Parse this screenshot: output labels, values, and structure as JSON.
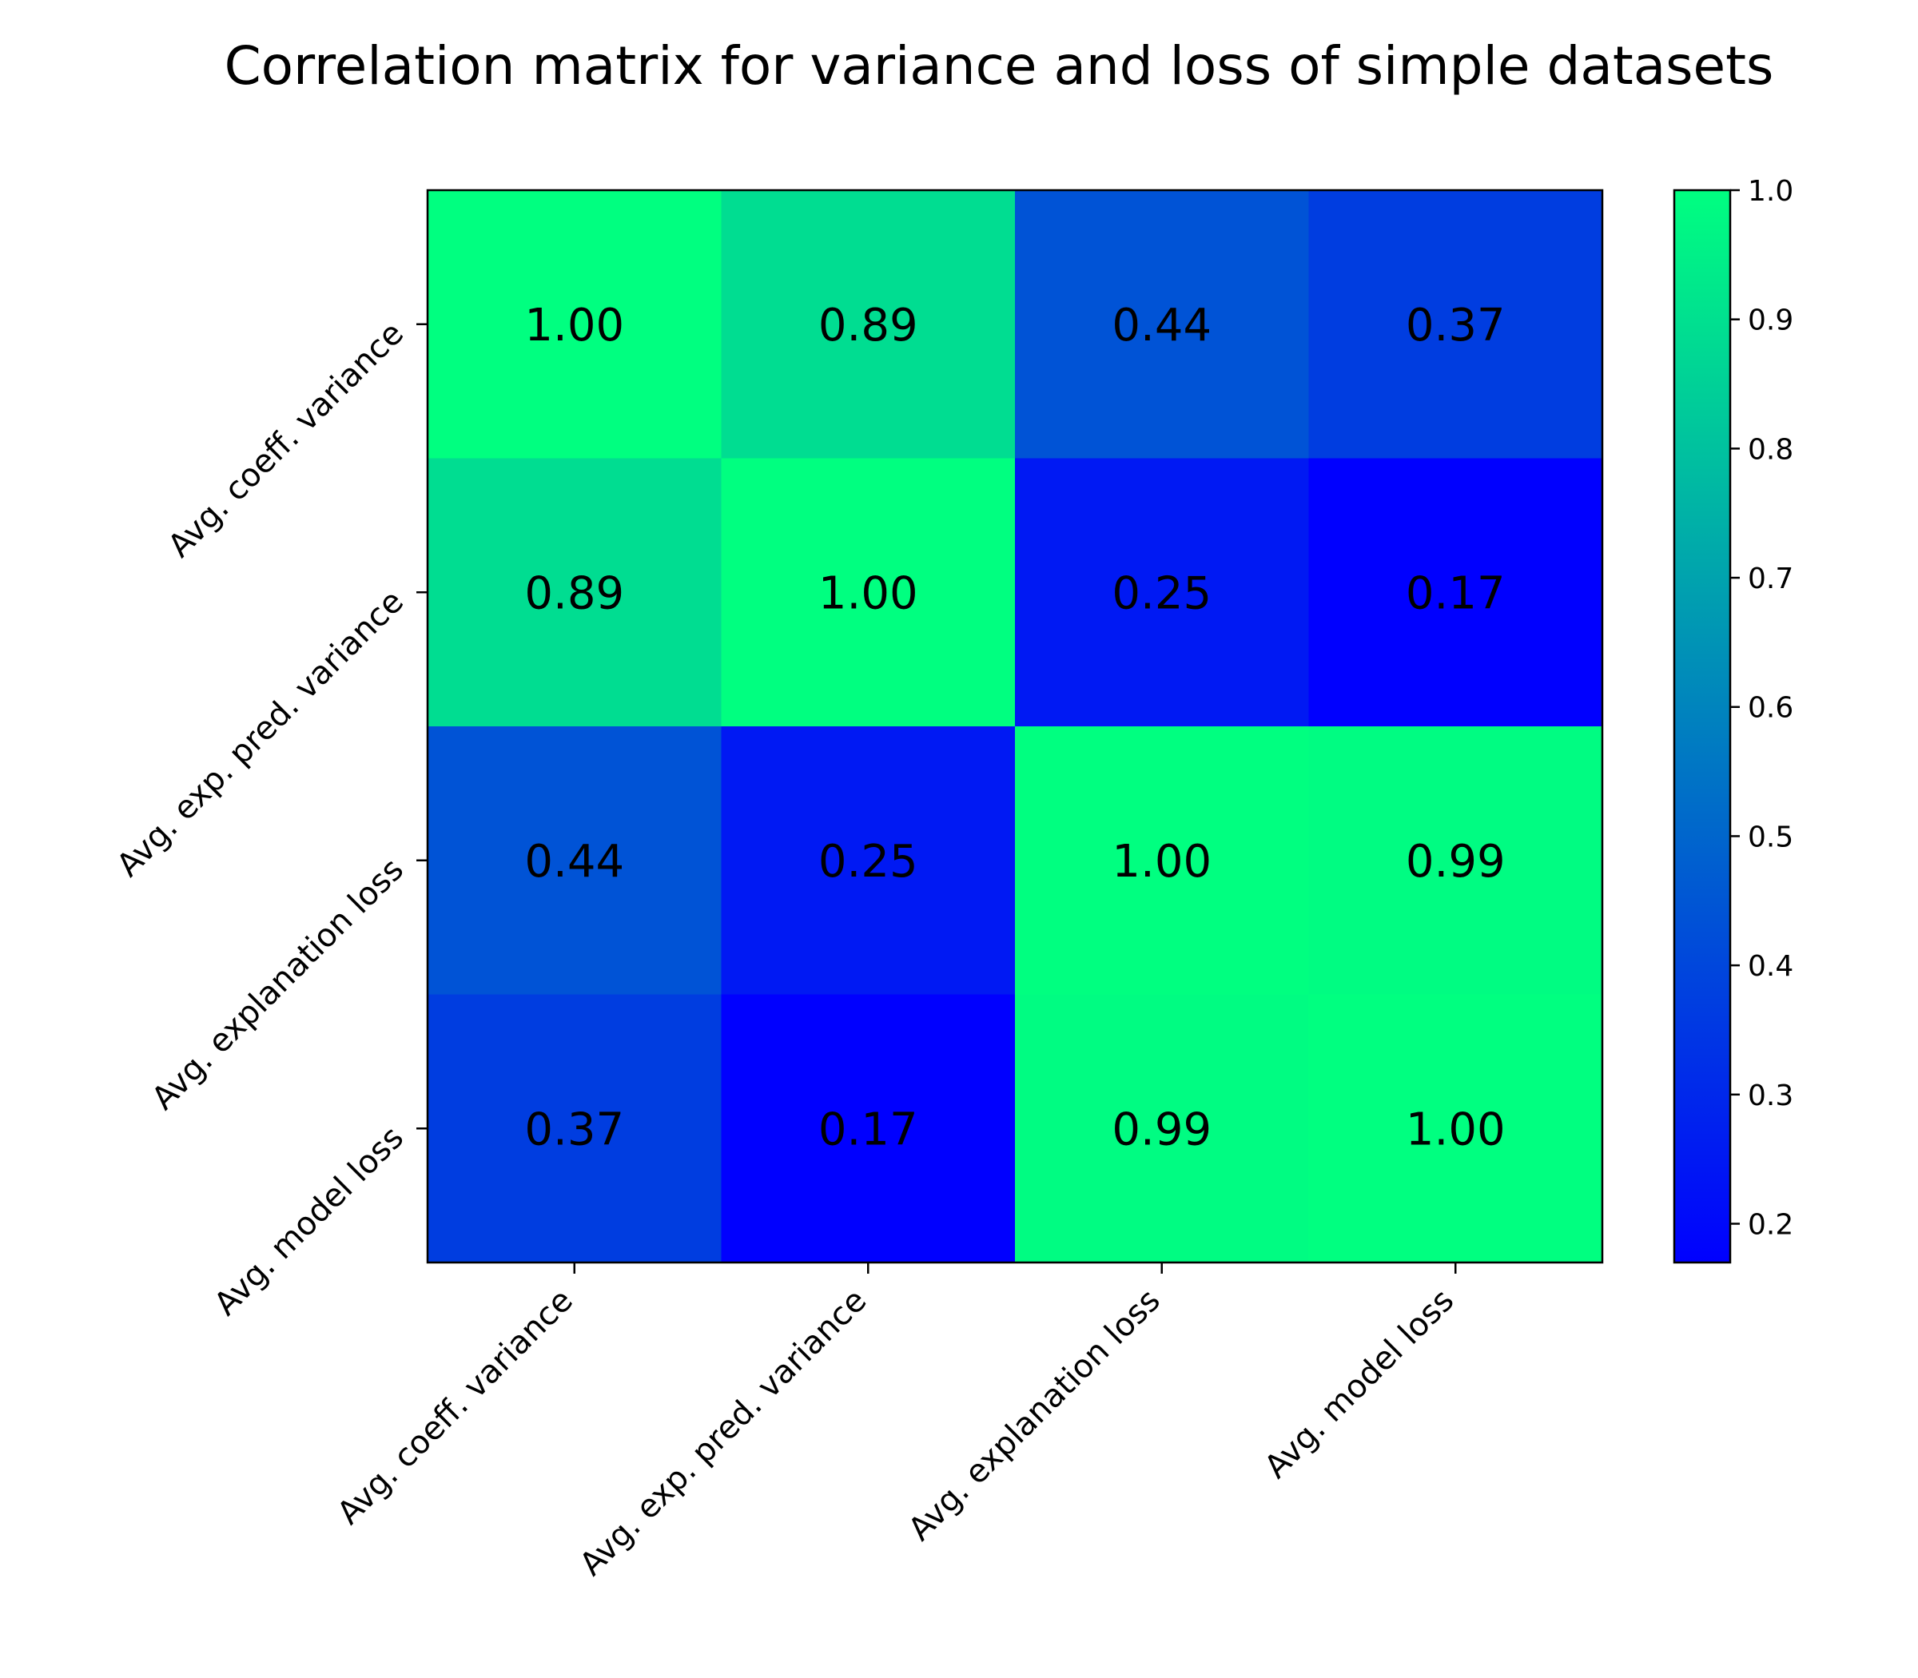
{
  "chart_data": {
    "type": "heatmap",
    "title": "Correlation matrix for variance and loss of simple datasets",
    "x_labels": [
      "Avg. coeff. variance",
      "Avg. exp. pred. variance",
      "Avg. explanation loss",
      "Avg. model loss"
    ],
    "y_labels": [
      "Avg. coeff. variance",
      "Avg. exp. pred. variance",
      "Avg. explanation loss",
      "Avg. model loss"
    ],
    "matrix": [
      [
        1.0,
        0.89,
        0.44,
        0.37
      ],
      [
        0.89,
        1.0,
        0.25,
        0.17
      ],
      [
        0.44,
        0.25,
        1.0,
        0.99
      ],
      [
        0.37,
        0.17,
        0.99,
        1.0
      ]
    ],
    "value_format": "0.00",
    "colorbar": {
      "range": [
        0.17,
        1.0
      ],
      "ticks": [
        "1.0",
        "0.9",
        "0.8",
        "0.7",
        "0.6",
        "0.5",
        "0.4",
        "0.3",
        "0.2"
      ],
      "colormap": "winter",
      "color_low": "#0000ff",
      "color_high": "#00ff80"
    },
    "xlabel": "",
    "ylabel": "",
    "grid": false
  }
}
